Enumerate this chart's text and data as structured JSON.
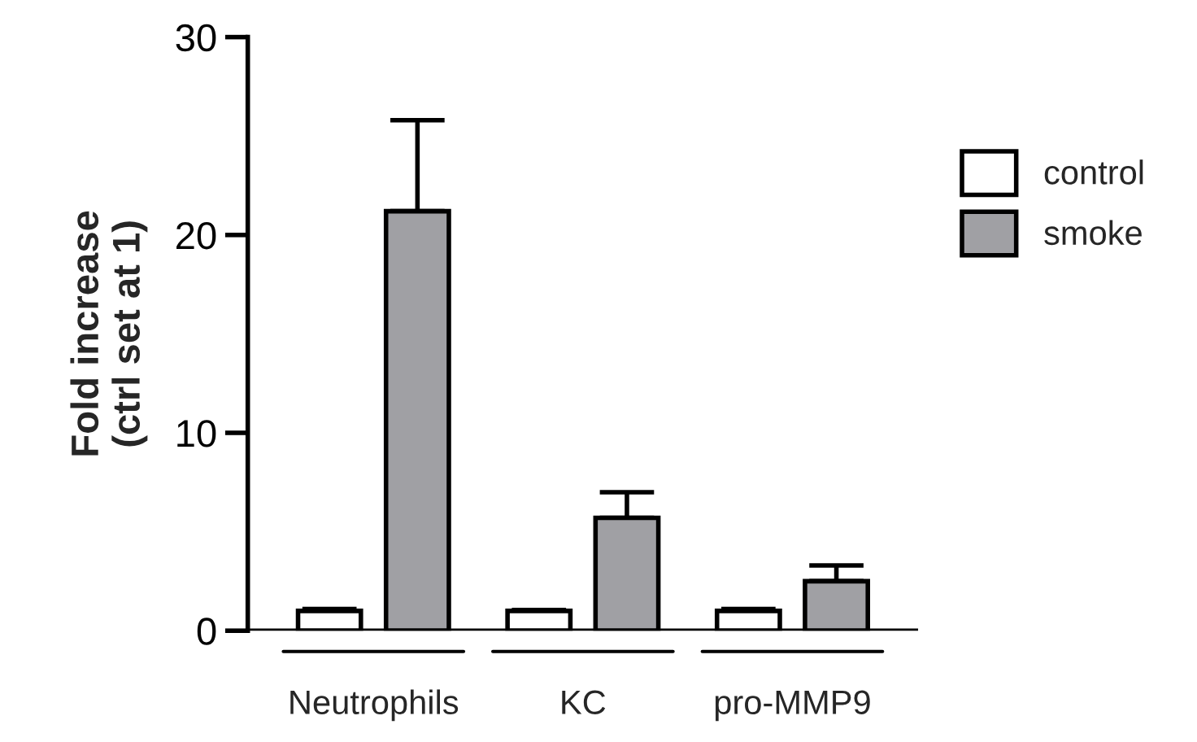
{
  "chart_data": {
    "type": "bar",
    "ylabel": "Fold increase\n(ctrl set at 1)",
    "categories": [
      "Neutrophils",
      "KC",
      "pro-MMP9"
    ],
    "series": [
      {
        "name": "control",
        "color": "#ffffff",
        "values": [
          1.0,
          1.0,
          1.0
        ],
        "errors": [
          0.1,
          0.05,
          0.1
        ]
      },
      {
        "name": "smoke",
        "color": "#a0a0a4",
        "values": [
          21.2,
          5.7,
          2.5
        ],
        "errors": [
          4.6,
          1.3,
          0.8
        ]
      }
    ],
    "ylim": [
      0,
      30
    ],
    "yticks": [
      0,
      10,
      20,
      30
    ],
    "grid": false,
    "legend": "right"
  }
}
